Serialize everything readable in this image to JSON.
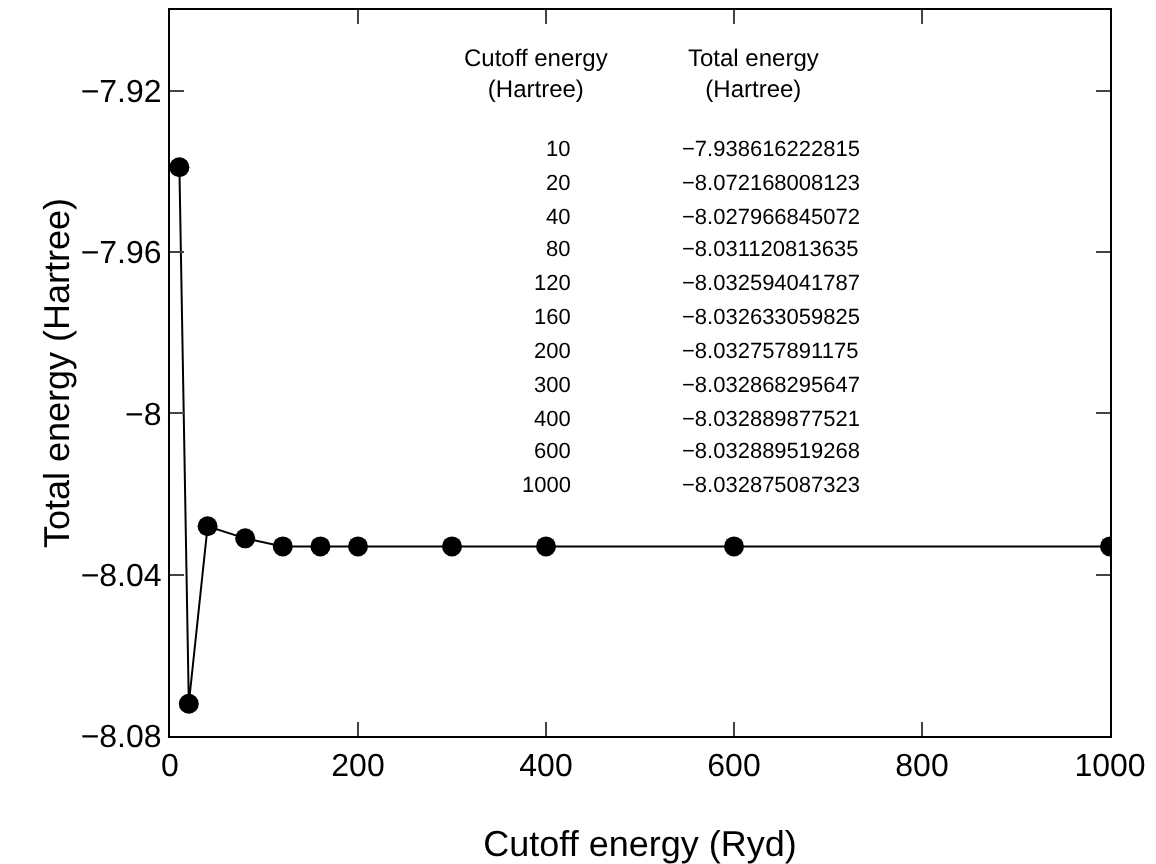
{
  "chart_data": {
    "type": "line",
    "xlabel": "Cutoff energy (Ryd)",
    "ylabel": "Total energy (Hartree)",
    "x": [
      10,
      20,
      40,
      80,
      120,
      160,
      200,
      300,
      400,
      600,
      1000
    ],
    "values": [
      -7.939,
      -8.072,
      -8.028,
      -8.031,
      -8.033,
      -8.033,
      -8.033,
      -8.033,
      -8.033,
      -8.033,
      -8.033
    ],
    "color": "#000000",
    "marker": "circle",
    "line_style": "solid",
    "grid": false,
    "xlim": [
      0,
      1000
    ],
    "xticks": [
      0,
      200,
      400,
      600,
      800,
      1000
    ],
    "ylim": [
      -8.08,
      -7.9
    ],
    "yticks": [
      {
        "value": -8.08,
        "label": "−8.08"
      },
      {
        "value": -8.04,
        "label": "−8.04"
      },
      {
        "value": -8,
        "label": "−8"
      },
      {
        "value": -7.96,
        "label": "−7.96"
      },
      {
        "value": -7.92,
        "label": "−7.92"
      }
    ],
    "annotations": [
      "Cutoff energy\n(Hartree)",
      "Total energy\n(Hartree)",
      "10",
      "−7.938616222815",
      "20",
      "−8.072168008123",
      "40",
      "−8.027966845072",
      "80",
      "−8.031120813635",
      "120",
      "−8.032594041787",
      "160",
      "−8.032633059825",
      "200",
      "−8.032757891175",
      "300",
      "−8.032868295647",
      "400",
      "−8.032889877521",
      "600",
      "−8.032889519268",
      "1000",
      "−8.032875087323"
    ]
  }
}
